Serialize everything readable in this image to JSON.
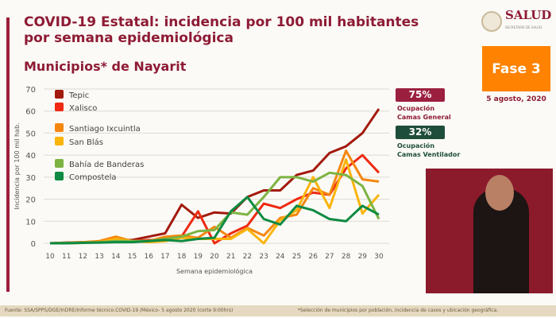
{
  "header": {
    "title": "COVID-19 Estatal: incidencia por 100 mil habitantes por semana epidemiológica",
    "subtitle": "Municipios* de Nayarit",
    "logo_text": "SALUD",
    "logo_sub": "SECRETARÍA DE SALUD"
  },
  "phase": {
    "label": "Fase 3",
    "date": "5 agosto, 2020",
    "color": "#ff8200"
  },
  "occupancy": [
    {
      "value": "75%",
      "label1": "Ocupación",
      "label2": "Camas General",
      "color": "#9b2040"
    },
    {
      "value": "32%",
      "label1": "Ocupación",
      "label2": "Camas Ventilador",
      "color": "#1f4d3c"
    }
  ],
  "footer": {
    "source": "Fuente: SSA/SPPS/DGE/InDRE/Informe técnico.COVID-19 /México- 5 agosto 2020 (corte 9:00hrs)",
    "note": "*Selección de municipios por población, incidencia de casos y ubicación geográfica."
  },
  "chart_data": {
    "type": "line",
    "xlabel": "Semana epidemiológica",
    "ylabel": "Incidencia por 100 mil hab.",
    "x": [
      10,
      11,
      12,
      13,
      14,
      15,
      16,
      17,
      18,
      19,
      20,
      21,
      22,
      23,
      24,
      25,
      26,
      27,
      28,
      29,
      30
    ],
    "ylim": [
      0,
      70
    ],
    "yticks": [
      0,
      10,
      20,
      30,
      40,
      50,
      60,
      70
    ],
    "grid": true,
    "legend": "top-left",
    "series": [
      {
        "name": "Tepic",
        "color": "#a31a0e",
        "values": [
          0,
          0.3,
          0.5,
          0.7,
          1.5,
          1.5,
          3,
          4.5,
          17.5,
          11.5,
          14,
          13.5,
          21,
          24,
          24,
          31,
          33,
          41,
          44,
          50,
          61
        ]
      },
      {
        "name": "Xalisco",
        "color": "#ee2a12",
        "values": [
          0,
          0.2,
          0.3,
          0.5,
          1,
          1,
          1.5,
          1.5,
          3,
          14.5,
          0,
          4.5,
          8,
          18,
          16,
          20,
          23,
          22,
          34,
          40,
          32
        ]
      },
      {
        "name": "Santiago Ixcuintla",
        "color": "#f5870e",
        "values": [
          0,
          0.2,
          0.5,
          1,
          3,
          1,
          1,
          3,
          3.5,
          2.5,
          7.5,
          2.5,
          7,
          3.5,
          11.5,
          13,
          25,
          22,
          42,
          29,
          28
        ]
      },
      {
        "name": "San Blás",
        "color": "#fbb40c",
        "values": [
          0,
          0,
          0.2,
          0.5,
          2,
          1,
          0.5,
          1,
          2.5,
          2,
          2,
          2,
          6.5,
          0,
          10.5,
          15,
          30,
          16,
          38,
          13.5,
          22
        ]
      },
      {
        "name": "Bahía de Banderas",
        "color": "#7cb342",
        "values": [
          0,
          0.2,
          0.3,
          0.5,
          1,
          1,
          1,
          2,
          3,
          5.5,
          6,
          14,
          13,
          21,
          30,
          30,
          28,
          32,
          31,
          26,
          11
        ]
      },
      {
        "name": "Compostela",
        "color": "#0f8a42",
        "values": [
          0,
          0,
          0.2,
          0.3,
          0.5,
          0.5,
          1,
          1.5,
          1,
          2,
          2.5,
          14.5,
          21,
          11,
          8.5,
          17,
          15,
          11,
          10,
          17,
          13
        ]
      }
    ]
  }
}
